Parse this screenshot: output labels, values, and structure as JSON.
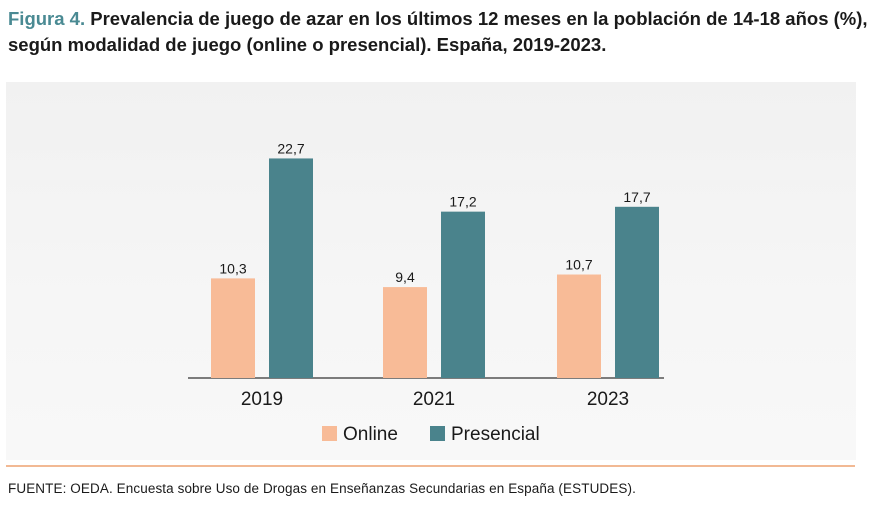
{
  "header": {
    "figure_label": "Figura 4.",
    "title_line1": "Prevalencia de juego de azar en los últimos 12 meses en la población de 14-18 años (%),",
    "title_line2": "según modalidad de juego (online o presencial). España, 2019-2023."
  },
  "chart_data": {
    "type": "bar",
    "categories": [
      "2019",
      "2021",
      "2023"
    ],
    "series": [
      {
        "name": "Online",
        "color": "#f8bb97",
        "values": [
          10.3,
          9.4,
          10.7
        ],
        "labels": [
          "10,3",
          "9,4",
          "10,7"
        ]
      },
      {
        "name": "Presencial",
        "color": "#4a838c",
        "values": [
          22.7,
          17.2,
          17.7
        ],
        "labels": [
          "22,7",
          "17,2",
          "17,7"
        ]
      }
    ],
    "ylim": [
      0,
      25
    ],
    "legend_position": "bottom-center",
    "grid": false
  },
  "footer": {
    "source": "FUENTE: OEDA. Encuesta sobre Uso de Drogas en Enseñanzas Secundarias en España (ESTUDES)."
  }
}
